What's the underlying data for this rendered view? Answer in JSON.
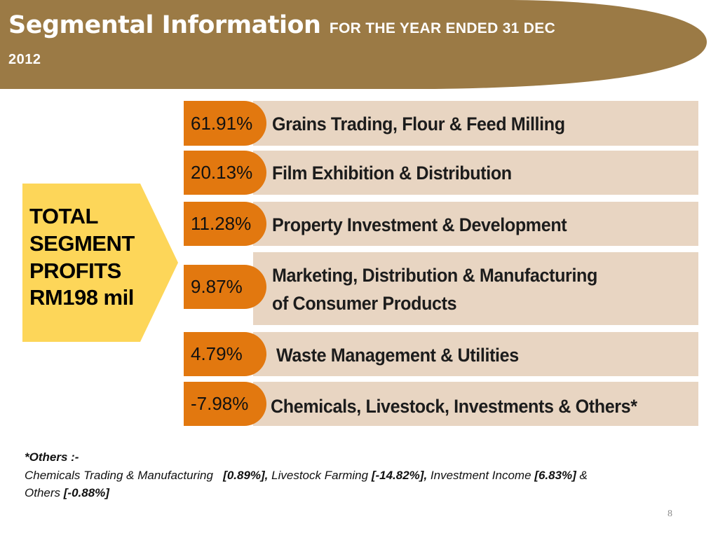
{
  "header": {
    "title": "Segmental Information",
    "subtitle": "FOR THE YEAR ENDED 31 DEC",
    "year": "2012",
    "color": "#9b7a45"
  },
  "total": {
    "line1": "TOTAL",
    "line2": "SEGMENT",
    "line3": "PROFITS",
    "line4": "RM198 mil",
    "color": "#fdd659"
  },
  "segments": [
    {
      "percent": "61.91%",
      "label": "Grains Trading, Flour & Feed Milling"
    },
    {
      "percent": "20.13%",
      "label": "Film Exhibition & Distribution"
    },
    {
      "percent": "11.28%",
      "label": "Property Investment & Development"
    },
    {
      "percent": "9.87%",
      "label": "Marketing, Distribution & Manufacturing",
      "label2": "of Consumer Products"
    },
    {
      "percent": "4.79%",
      "label": "Waste Management  & Utilities"
    },
    {
      "percent": "-7.98%",
      "label": "Chemicals, Livestock, Investments & Others*"
    }
  ],
  "colors": {
    "badge": "#e2780f",
    "bar": "#e8d5c2"
  },
  "note": {
    "heading": "*Others :-",
    "item1": "Chemicals Trading & Manufacturing",
    "val1": "[0.89%],",
    "item2": "Livestock Farming",
    "val2": "[-14.82%],",
    "item3": "Investment Income",
    "val3": "[6.83%]",
    "amp": "&",
    "item4": "Others",
    "val4": "[-0.88%]"
  },
  "page_number": "8"
}
